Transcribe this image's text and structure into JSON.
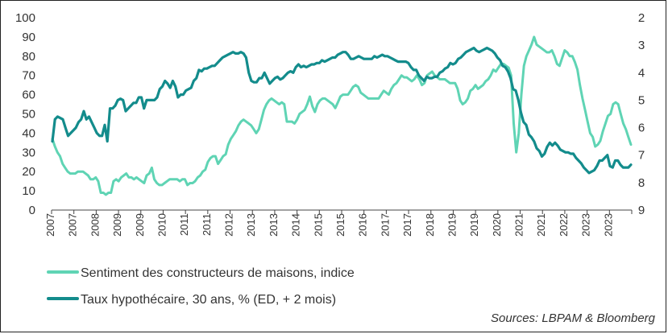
{
  "chart_data": {
    "type": "line",
    "x_labels": [
      "2007",
      "2007",
      "2008",
      "2009",
      "2009",
      "2010",
      "2011",
      "2011",
      "2012",
      "2013",
      "2013",
      "2014",
      "2015",
      "2015",
      "2016",
      "2017",
      "2017",
      "2018",
      "2019",
      "2019",
      "2020",
      "2021",
      "2021",
      "2022",
      "2023",
      "2023"
    ],
    "y_left": {
      "min": 0,
      "max": 100,
      "ticks": [
        0,
        10,
        20,
        30,
        40,
        50,
        60,
        70,
        80,
        90,
        100
      ]
    },
    "y_right": {
      "min": 2,
      "max": 9,
      "inverted": true,
      "ticks": [
        2,
        3,
        4,
        5,
        6,
        7,
        8,
        9
      ]
    },
    "grid": false,
    "legend": "bottom-left",
    "series": [
      {
        "name": "Sentiment des constructeurs de maisons, indice",
        "axis": "left",
        "color": "#5fd4b4",
        "values": [
          37,
          33,
          30,
          28,
          24,
          22,
          20,
          19,
          19,
          19,
          20,
          20,
          20,
          19,
          18,
          16,
          16,
          17,
          15,
          9,
          9,
          8,
          9,
          9,
          15,
          16,
          15,
          17,
          18,
          19,
          17,
          17,
          16,
          17,
          16,
          15,
          14,
          18,
          19,
          22,
          16,
          14,
          13,
          13,
          14,
          15,
          16,
          16,
          16,
          16,
          15,
          16,
          16,
          13,
          14,
          14,
          15,
          17,
          18,
          20,
          21,
          25,
          27,
          28,
          28,
          24,
          26,
          28,
          29,
          34,
          37,
          39,
          41,
          44,
          46,
          47,
          46,
          45,
          44,
          42,
          40,
          42,
          47,
          52,
          55,
          57,
          58,
          57,
          56,
          55,
          56,
          55,
          46,
          46,
          46,
          45,
          47,
          50,
          51,
          52,
          55,
          59,
          54,
          51,
          55,
          57,
          58,
          58,
          57,
          56,
          55,
          53,
          56,
          59,
          60,
          60,
          60,
          62,
          64,
          65,
          64,
          61,
          60,
          59,
          58,
          58,
          58,
          58,
          58,
          60,
          62,
          61,
          60,
          63,
          65,
          66,
          68,
          70,
          69,
          69,
          68,
          67,
          68,
          70,
          68,
          65,
          66,
          70,
          71,
          72,
          70,
          69,
          68,
          68,
          68,
          67,
          66,
          66,
          66,
          63,
          57,
          55,
          56,
          58,
          62,
          63,
          65,
          63,
          64,
          65,
          67,
          68,
          70,
          73,
          72,
          74,
          76,
          76,
          75,
          74,
          70,
          45,
          30,
          40,
          60,
          75,
          80,
          83,
          86,
          90,
          86,
          85,
          84,
          83,
          82,
          82,
          83,
          80,
          76,
          75,
          79,
          83,
          82,
          80,
          80,
          77,
          73,
          65,
          58,
          52,
          46,
          40,
          38,
          33,
          34,
          36,
          41,
          45,
          49,
          50,
          55,
          56,
          55,
          50,
          45,
          42,
          38,
          34
        ]
      },
      {
        "name": "Taux hypothécaire, 30 ans, % (ED, + 2 mois)",
        "axis": "right",
        "color": "#138c8c",
        "values": [
          6.5,
          5.7,
          5.6,
          5.65,
          5.7,
          6.0,
          6.3,
          6.2,
          6.1,
          6.0,
          5.8,
          5.7,
          5.4,
          5.7,
          5.6,
          5.8,
          6.0,
          6.2,
          6.3,
          6.3,
          5.9,
          6.5,
          5.3,
          5.3,
          5.2,
          5.0,
          4.95,
          5.0,
          5.4,
          5.3,
          5.2,
          5.1,
          5.1,
          4.9,
          4.9,
          5.3,
          5.0,
          5.0,
          5.0,
          5.0,
          4.9,
          4.6,
          4.5,
          4.3,
          4.4,
          4.55,
          4.3,
          4.5,
          4.9,
          4.8,
          4.8,
          4.65,
          4.6,
          4.55,
          4.3,
          4.2,
          3.9,
          3.95,
          3.85,
          3.85,
          3.8,
          3.75,
          3.75,
          3.65,
          3.55,
          3.45,
          3.4,
          3.35,
          3.3,
          3.25,
          3.3,
          3.3,
          3.25,
          3.3,
          3.45,
          4.0,
          4.3,
          4.35,
          4.35,
          4.2,
          4.2,
          4.0,
          4.2,
          4.4,
          4.3,
          4.2,
          4.15,
          4.25,
          4.2,
          4.1,
          4.0,
          3.95,
          4.0,
          3.8,
          3.7,
          3.8,
          3.75,
          3.8,
          3.75,
          3.7,
          3.7,
          3.65,
          3.65,
          3.55,
          3.6,
          3.55,
          3.5,
          3.45,
          3.45,
          3.35,
          3.3,
          3.25,
          3.25,
          3.35,
          3.5,
          3.5,
          3.45,
          3.4,
          3.45,
          3.5,
          3.5,
          3.5,
          3.5,
          3.4,
          3.45,
          3.4,
          3.35,
          3.4,
          3.4,
          3.45,
          3.5,
          3.55,
          3.6,
          3.6,
          3.6,
          3.6,
          3.65,
          3.8,
          3.9,
          3.9,
          4.1,
          4.2,
          4.3,
          4.15,
          4.2,
          4.2,
          4.15,
          4.15,
          4.0,
          3.95,
          3.85,
          3.8,
          3.65,
          3.7,
          3.65,
          3.5,
          3.45,
          3.35,
          3.25,
          3.2,
          3.15,
          3.1,
          3.2,
          3.25,
          3.2,
          3.15,
          3.1,
          3.15,
          3.2,
          3.3,
          3.45,
          3.55,
          3.75,
          3.8,
          3.95,
          4.2,
          4.6,
          4.65,
          5.0,
          5.45,
          5.8,
          5.9,
          6.25,
          6.35,
          6.5,
          6.75,
          6.85,
          7.05,
          6.95,
          6.7,
          6.55,
          6.65,
          6.55,
          6.65,
          6.8,
          6.85,
          6.9,
          6.9,
          6.95,
          6.95,
          7.1,
          7.2,
          7.3,
          7.45,
          7.55,
          7.65,
          7.6,
          7.55,
          7.4,
          7.2,
          7.2,
          7.1,
          7.0,
          7.4,
          7.45,
          7.2,
          7.2,
          7.35,
          7.45,
          7.45,
          7.45,
          7.35
        ]
      }
    ]
  },
  "legend": {
    "items": [
      {
        "label": "Sentiment des constructeurs de maisons, indice",
        "color": "#5fd4b4"
      },
      {
        "label": "Taux hypothécaire, 30 ans, % (ED, + 2 mois)",
        "color": "#138c8c"
      }
    ]
  },
  "source": "Sources: LBPAM & Bloomberg"
}
